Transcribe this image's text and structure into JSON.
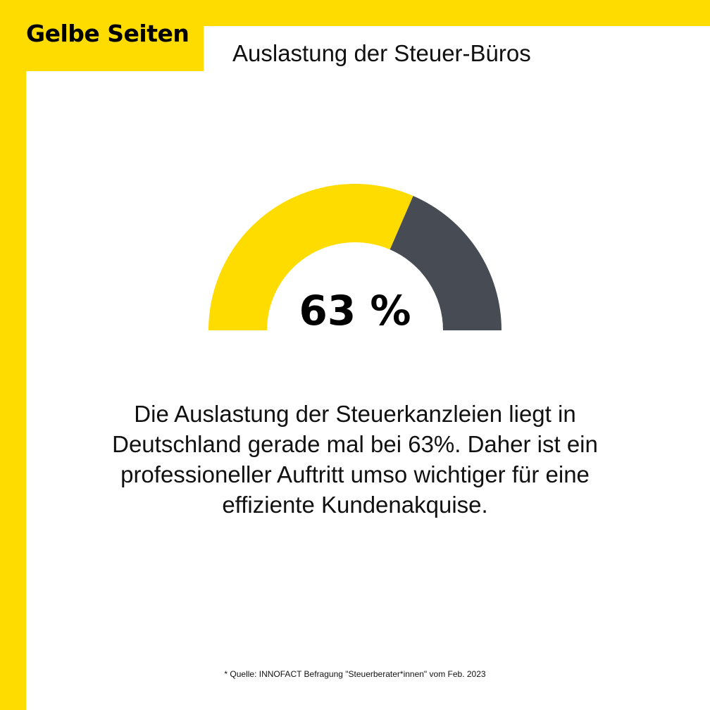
{
  "brand": {
    "logo_text": "Gelbe Seiten",
    "color": "#FFDC00"
  },
  "header": {
    "title": "Auslastung der Steuer-Büros"
  },
  "chart_data": {
    "type": "pie",
    "style": "half-donut gauge",
    "title": "Auslastung der Steuer-Büros",
    "value_percent": 63,
    "value_label": "63 %",
    "segments": [
      {
        "value": 63,
        "color": "#FFDC00"
      },
      {
        "value": 37,
        "color": "#474B53"
      }
    ]
  },
  "body": {
    "text": "Die Auslastung der Steuerkanzleien liegt in Deutschland gerade mal bei 63%. Daher ist ein professioneller Auftritt umso wichtiger für eine effiziente Kundenakquise."
  },
  "footnote": {
    "text": "* Quelle: INNOFACT Befragung \"Steuerberater*innen\" vom Feb. 2023"
  }
}
